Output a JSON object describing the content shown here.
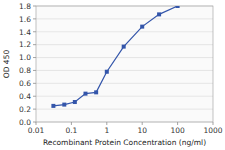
{
  "chart_data": {
    "type": "line",
    "xlabel": "Recombinant Protein Concentration (ng/ml)",
    "ylabel": "OD 450",
    "x": [
      0.031,
      0.063,
      0.125,
      0.25,
      0.5,
      1.0,
      3.0,
      10.0,
      30.0,
      100.0
    ],
    "y": [
      0.25,
      0.27,
      0.31,
      0.44,
      0.46,
      0.78,
      1.17,
      1.48,
      1.67,
      1.8
    ],
    "color": "#3355aa",
    "marker": "square",
    "log": "x",
    "grid": true,
    "xlim": [
      0.01,
      1000
    ],
    "ylim": [
      0.0,
      1.8
    ],
    "xticks": [
      0.01,
      0.1,
      1,
      10,
      100,
      1000
    ],
    "yticks": [
      {
        "value": 0.0,
        "label": "0.0"
      },
      0.2,
      0.4,
      0.6,
      0.8,
      {
        "value": 1.0,
        "label": "1.0"
      },
      1.2,
      1.4,
      1.6,
      1.8
    ]
  }
}
